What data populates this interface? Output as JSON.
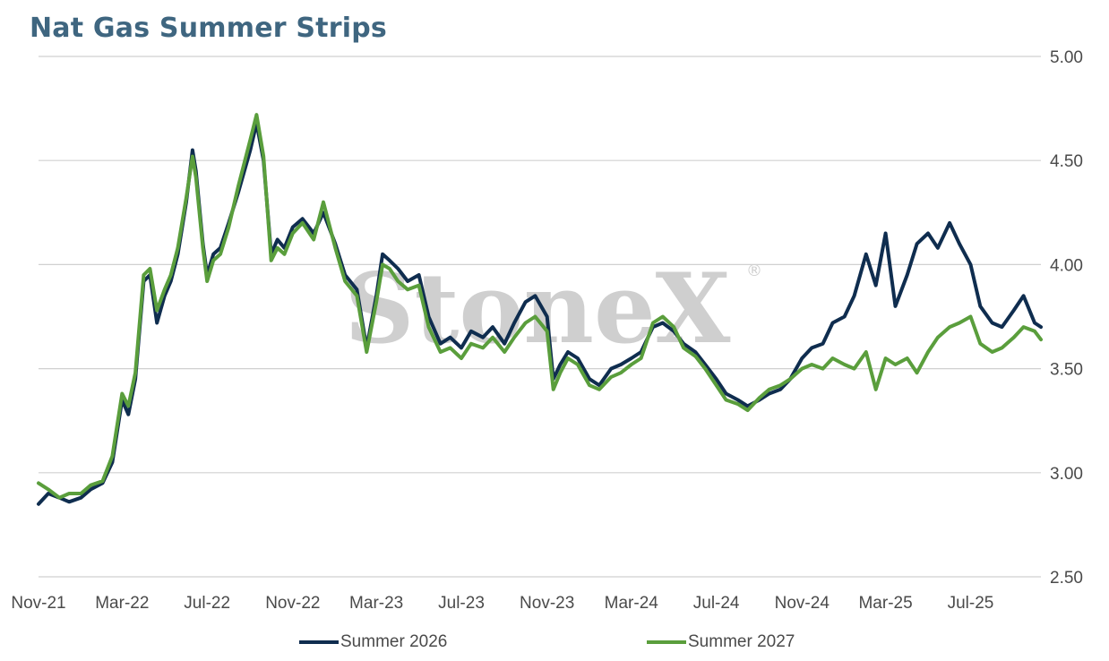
{
  "chart_data": {
    "type": "line",
    "title": "Nat Gas Summer Strips",
    "watermark": "StoneX",
    "xlabel": "",
    "ylabel": "",
    "ylim": [
      2.5,
      5.0
    ],
    "y_ticks": [
      "5.00",
      "4.50",
      "4.00",
      "3.50",
      "3.00",
      "2.50"
    ],
    "y_tick_values": [
      5.0,
      4.5,
      4.0,
      3.5,
      3.0,
      2.5
    ],
    "y_axis_side": "right",
    "x_ticks": [
      "Nov-21",
      "Mar-22",
      "Jul-22",
      "Nov-22",
      "Mar-23",
      "Jul-23",
      "Nov-23",
      "Mar-24",
      "Jul-24",
      "Nov-24",
      "Mar-25",
      "Jul-25"
    ],
    "x_tick_dates": [
      "2021-11-01",
      "2022-03-01",
      "2022-07-01",
      "2022-11-01",
      "2023-03-01",
      "2023-07-01",
      "2023-11-01",
      "2024-03-01",
      "2024-07-01",
      "2024-11-01",
      "2025-03-01",
      "2025-07-01"
    ],
    "x_end_date": "2025-10-10",
    "grid": true,
    "legend_position": "bottom",
    "series": [
      {
        "name": "Summer 2026",
        "color": "#0f2d4f",
        "points": [
          [
            "2021-11-01",
            2.85
          ],
          [
            "2021-11-15",
            2.9
          ],
          [
            "2021-12-01",
            2.88
          ],
          [
            "2021-12-15",
            2.86
          ],
          [
            "2022-01-01",
            2.88
          ],
          [
            "2022-01-15",
            2.92
          ],
          [
            "2022-02-01",
            2.95
          ],
          [
            "2022-02-15",
            3.05
          ],
          [
            "2022-03-01",
            3.35
          ],
          [
            "2022-03-10",
            3.28
          ],
          [
            "2022-03-20",
            3.45
          ],
          [
            "2022-04-01",
            3.92
          ],
          [
            "2022-04-10",
            3.95
          ],
          [
            "2022-04-20",
            3.72
          ],
          [
            "2022-05-01",
            3.85
          ],
          [
            "2022-05-10",
            3.92
          ],
          [
            "2022-05-20",
            4.05
          ],
          [
            "2022-06-01",
            4.3
          ],
          [
            "2022-06-10",
            4.55
          ],
          [
            "2022-06-15",
            4.45
          ],
          [
            "2022-06-25",
            4.1
          ],
          [
            "2022-07-01",
            3.95
          ],
          [
            "2022-07-10",
            4.05
          ],
          [
            "2022-07-20",
            4.08
          ],
          [
            "2022-08-01",
            4.2
          ],
          [
            "2022-08-15",
            4.35
          ],
          [
            "2022-09-01",
            4.55
          ],
          [
            "2022-09-10",
            4.68
          ],
          [
            "2022-09-20",
            4.5
          ],
          [
            "2022-10-01",
            4.05
          ],
          [
            "2022-10-10",
            4.12
          ],
          [
            "2022-10-20",
            4.08
          ],
          [
            "2022-11-01",
            4.18
          ],
          [
            "2022-11-15",
            4.22
          ],
          [
            "2022-12-01",
            4.15
          ],
          [
            "2022-12-15",
            4.25
          ],
          [
            "2023-01-01",
            4.1
          ],
          [
            "2023-01-15",
            3.95
          ],
          [
            "2023-02-01",
            3.88
          ],
          [
            "2023-02-15",
            3.6
          ],
          [
            "2023-03-01",
            3.85
          ],
          [
            "2023-03-10",
            4.05
          ],
          [
            "2023-03-20",
            4.02
          ],
          [
            "2023-04-01",
            3.98
          ],
          [
            "2023-04-15",
            3.92
          ],
          [
            "2023-05-01",
            3.95
          ],
          [
            "2023-05-15",
            3.75
          ],
          [
            "2023-06-01",
            3.62
          ],
          [
            "2023-06-15",
            3.65
          ],
          [
            "2023-07-01",
            3.6
          ],
          [
            "2023-07-15",
            3.68
          ],
          [
            "2023-08-01",
            3.65
          ],
          [
            "2023-08-15",
            3.7
          ],
          [
            "2023-09-01",
            3.62
          ],
          [
            "2023-09-15",
            3.72
          ],
          [
            "2023-10-01",
            3.82
          ],
          [
            "2023-10-15",
            3.85
          ],
          [
            "2023-11-01",
            3.75
          ],
          [
            "2023-11-10",
            3.45
          ],
          [
            "2023-11-20",
            3.52
          ],
          [
            "2023-12-01",
            3.58
          ],
          [
            "2023-12-15",
            3.55
          ],
          [
            "2024-01-01",
            3.45
          ],
          [
            "2024-01-15",
            3.42
          ],
          [
            "2024-02-01",
            3.5
          ],
          [
            "2024-02-15",
            3.52
          ],
          [
            "2024-03-01",
            3.55
          ],
          [
            "2024-03-15",
            3.58
          ],
          [
            "2024-04-01",
            3.7
          ],
          [
            "2024-04-15",
            3.72
          ],
          [
            "2024-05-01",
            3.68
          ],
          [
            "2024-05-15",
            3.62
          ],
          [
            "2024-06-01",
            3.58
          ],
          [
            "2024-06-15",
            3.52
          ],
          [
            "2024-07-01",
            3.45
          ],
          [
            "2024-07-15",
            3.38
          ],
          [
            "2024-08-01",
            3.35
          ],
          [
            "2024-08-15",
            3.32
          ],
          [
            "2024-09-01",
            3.35
          ],
          [
            "2024-09-15",
            3.38
          ],
          [
            "2024-10-01",
            3.4
          ],
          [
            "2024-10-15",
            3.45
          ],
          [
            "2024-11-01",
            3.55
          ],
          [
            "2024-11-15",
            3.6
          ],
          [
            "2024-12-01",
            3.62
          ],
          [
            "2024-12-15",
            3.72
          ],
          [
            "2025-01-01",
            3.75
          ],
          [
            "2025-01-15",
            3.85
          ],
          [
            "2025-02-01",
            4.05
          ],
          [
            "2025-02-15",
            3.9
          ],
          [
            "2025-03-01",
            4.15
          ],
          [
            "2025-03-15",
            3.8
          ],
          [
            "2025-04-01",
            3.95
          ],
          [
            "2025-04-15",
            4.1
          ],
          [
            "2025-05-01",
            4.15
          ],
          [
            "2025-05-15",
            4.08
          ],
          [
            "2025-06-01",
            4.2
          ],
          [
            "2025-06-15",
            4.1
          ],
          [
            "2025-07-01",
            4.0
          ],
          [
            "2025-07-15",
            3.8
          ],
          [
            "2025-08-01",
            3.72
          ],
          [
            "2025-08-15",
            3.7
          ],
          [
            "2025-09-01",
            3.78
          ],
          [
            "2025-09-15",
            3.85
          ],
          [
            "2025-10-01",
            3.72
          ],
          [
            "2025-10-10",
            3.7
          ]
        ]
      },
      {
        "name": "Summer 2027",
        "color": "#5a9e3c",
        "points": [
          [
            "2021-11-01",
            2.95
          ],
          [
            "2021-11-15",
            2.92
          ],
          [
            "2021-12-01",
            2.88
          ],
          [
            "2021-12-15",
            2.9
          ],
          [
            "2022-01-01",
            2.9
          ],
          [
            "2022-01-15",
            2.94
          ],
          [
            "2022-02-01",
            2.96
          ],
          [
            "2022-02-15",
            3.08
          ],
          [
            "2022-03-01",
            3.38
          ],
          [
            "2022-03-10",
            3.32
          ],
          [
            "2022-03-20",
            3.48
          ],
          [
            "2022-04-01",
            3.95
          ],
          [
            "2022-04-10",
            3.98
          ],
          [
            "2022-04-20",
            3.78
          ],
          [
            "2022-05-01",
            3.88
          ],
          [
            "2022-05-10",
            3.95
          ],
          [
            "2022-05-20",
            4.08
          ],
          [
            "2022-06-01",
            4.32
          ],
          [
            "2022-06-10",
            4.52
          ],
          [
            "2022-06-15",
            4.42
          ],
          [
            "2022-06-25",
            4.08
          ],
          [
            "2022-07-01",
            3.92
          ],
          [
            "2022-07-10",
            4.02
          ],
          [
            "2022-07-20",
            4.05
          ],
          [
            "2022-08-01",
            4.18
          ],
          [
            "2022-08-15",
            4.38
          ],
          [
            "2022-09-01",
            4.6
          ],
          [
            "2022-09-10",
            4.72
          ],
          [
            "2022-09-20",
            4.52
          ],
          [
            "2022-10-01",
            4.02
          ],
          [
            "2022-10-10",
            4.08
          ],
          [
            "2022-10-20",
            4.05
          ],
          [
            "2022-11-01",
            4.15
          ],
          [
            "2022-11-15",
            4.2
          ],
          [
            "2022-12-01",
            4.12
          ],
          [
            "2022-12-15",
            4.3
          ],
          [
            "2023-01-01",
            4.08
          ],
          [
            "2023-01-15",
            3.92
          ],
          [
            "2023-02-01",
            3.85
          ],
          [
            "2023-02-15",
            3.58
          ],
          [
            "2023-03-01",
            3.82
          ],
          [
            "2023-03-10",
            4.0
          ],
          [
            "2023-03-20",
            3.98
          ],
          [
            "2023-04-01",
            3.92
          ],
          [
            "2023-04-15",
            3.88
          ],
          [
            "2023-05-01",
            3.9
          ],
          [
            "2023-05-15",
            3.7
          ],
          [
            "2023-06-01",
            3.58
          ],
          [
            "2023-06-15",
            3.6
          ],
          [
            "2023-07-01",
            3.55
          ],
          [
            "2023-07-15",
            3.62
          ],
          [
            "2023-08-01",
            3.6
          ],
          [
            "2023-08-15",
            3.65
          ],
          [
            "2023-09-01",
            3.58
          ],
          [
            "2023-09-15",
            3.65
          ],
          [
            "2023-10-01",
            3.72
          ],
          [
            "2023-10-15",
            3.75
          ],
          [
            "2023-11-01",
            3.68
          ],
          [
            "2023-11-10",
            3.4
          ],
          [
            "2023-11-20",
            3.48
          ],
          [
            "2023-12-01",
            3.55
          ],
          [
            "2023-12-15",
            3.52
          ],
          [
            "2024-01-01",
            3.42
          ],
          [
            "2024-01-15",
            3.4
          ],
          [
            "2024-02-01",
            3.46
          ],
          [
            "2024-02-15",
            3.48
          ],
          [
            "2024-03-01",
            3.52
          ],
          [
            "2024-03-15",
            3.55
          ],
          [
            "2024-04-01",
            3.72
          ],
          [
            "2024-04-15",
            3.75
          ],
          [
            "2024-05-01",
            3.7
          ],
          [
            "2024-05-15",
            3.6
          ],
          [
            "2024-06-01",
            3.56
          ],
          [
            "2024-06-15",
            3.5
          ],
          [
            "2024-07-01",
            3.42
          ],
          [
            "2024-07-15",
            3.35
          ],
          [
            "2024-08-01",
            3.33
          ],
          [
            "2024-08-15",
            3.3
          ],
          [
            "2024-09-01",
            3.36
          ],
          [
            "2024-09-15",
            3.4
          ],
          [
            "2024-10-01",
            3.42
          ],
          [
            "2024-10-15",
            3.45
          ],
          [
            "2024-11-01",
            3.5
          ],
          [
            "2024-11-15",
            3.52
          ],
          [
            "2024-12-01",
            3.5
          ],
          [
            "2024-12-15",
            3.55
          ],
          [
            "2025-01-01",
            3.52
          ],
          [
            "2025-01-15",
            3.5
          ],
          [
            "2025-02-01",
            3.58
          ],
          [
            "2025-02-15",
            3.4
          ],
          [
            "2025-03-01",
            3.55
          ],
          [
            "2025-03-15",
            3.52
          ],
          [
            "2025-04-01",
            3.55
          ],
          [
            "2025-04-15",
            3.48
          ],
          [
            "2025-05-01",
            3.58
          ],
          [
            "2025-05-15",
            3.65
          ],
          [
            "2025-06-01",
            3.7
          ],
          [
            "2025-06-15",
            3.72
          ],
          [
            "2025-07-01",
            3.75
          ],
          [
            "2025-07-15",
            3.62
          ],
          [
            "2025-08-01",
            3.58
          ],
          [
            "2025-08-15",
            3.6
          ],
          [
            "2025-09-01",
            3.65
          ],
          [
            "2025-09-15",
            3.7
          ],
          [
            "2025-10-01",
            3.68
          ],
          [
            "2025-10-10",
            3.64
          ]
        ]
      }
    ]
  }
}
